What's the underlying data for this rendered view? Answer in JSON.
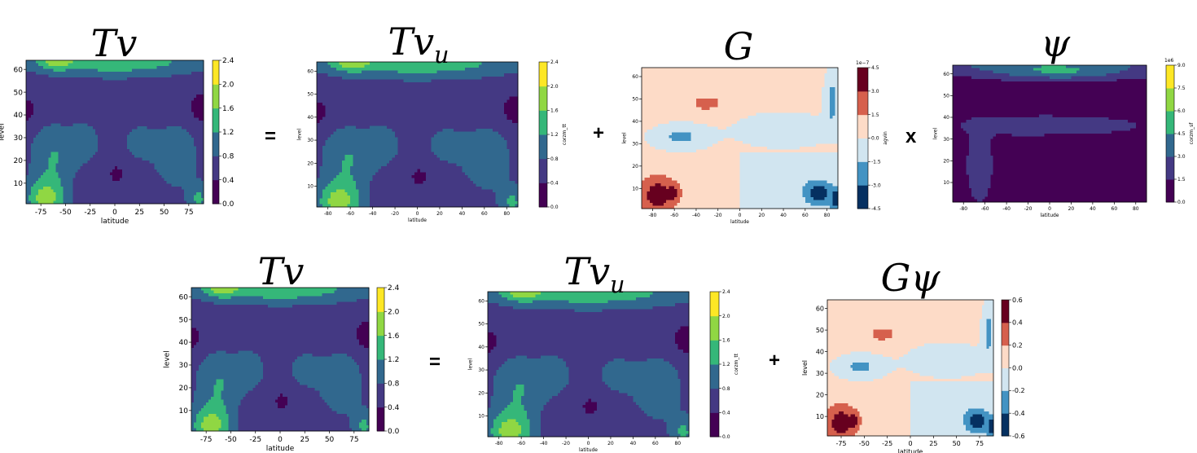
{
  "operators": {
    "top_equals": "=",
    "top_plus": "+",
    "top_times": "x",
    "bottom_equals": "=",
    "bottom_plus": "+"
  },
  "colors": {
    "viridis": [
      "#440154",
      "#443983",
      "#31688e",
      "#21918c",
      "#35b779",
      "#90d743",
      "#fde725"
    ],
    "rdbu": [
      "#053061",
      "#4393c3",
      "#d1e5f0",
      "#fddbc7",
      "#d6604d",
      "#67001f"
    ]
  },
  "chart_data": [
    {
      "id": "tv-top",
      "type": "heatmap",
      "title": "Tv",
      "title_sub": "",
      "xlabel": "latitude",
      "ylabel": "level",
      "cbar_label": "",
      "xticks": [
        "-75",
        "-50",
        "-25",
        "0",
        "25",
        "50",
        "75"
      ],
      "xtick_values": [
        -75,
        -50,
        -25,
        0,
        25,
        50,
        75
      ],
      "xlim": [
        -90,
        90
      ],
      "yticks": [
        "10",
        "20",
        "30",
        "40",
        "50",
        "60"
      ],
      "ytick_values": [
        10,
        20,
        30,
        40,
        50,
        60
      ],
      "ylim": [
        1,
        64
      ],
      "colorbar_ticks": [
        "0.0",
        "0.4",
        "0.8",
        "1.2",
        "1.6",
        "2.0",
        "2.4"
      ],
      "colorbar_levels": [
        0.0,
        0.4,
        0.8,
        1.2,
        1.6,
        2.0,
        2.4
      ],
      "colormap": "viridis",
      "field": "tv",
      "scale": 1,
      "offset": 0
    },
    {
      "id": "tvu-top",
      "type": "heatmap",
      "title": "Tv",
      "title_sub": "u",
      "xlabel": "latitude",
      "ylabel": "level",
      "cbar_label": "corzm_tt",
      "xticks": [
        "-80",
        "-60",
        "-40",
        "-20",
        "0",
        "20",
        "40",
        "60",
        "80"
      ],
      "xtick_values": [
        -80,
        -60,
        -40,
        -20,
        0,
        20,
        40,
        60,
        80
      ],
      "xlim": [
        -90,
        90
      ],
      "yticks": [
        "10",
        "20",
        "30",
        "40",
        "50",
        "60"
      ],
      "ytick_values": [
        10,
        20,
        30,
        40,
        50,
        60
      ],
      "ylim": [
        1,
        64
      ],
      "colorbar_ticks": [
        "0.0",
        "0.4",
        "0.8",
        "1.2",
        "1.6",
        "2.0",
        "2.4"
      ],
      "colorbar_levels": [
        0.0,
        0.4,
        0.8,
        1.2,
        1.6,
        2.0,
        2.4
      ],
      "colormap": "viridis",
      "field": "tv",
      "scale": 1,
      "offset": 0
    },
    {
      "id": "g-top",
      "type": "heatmap",
      "title": "G",
      "title_sub": "",
      "xlabel": "latitude",
      "ylabel": "level",
      "cbar_label": "agvin",
      "colorbar_exponent": "1e−7",
      "xticks": [
        "-80",
        "-60",
        "-40",
        "-20",
        "0",
        "20",
        "40",
        "60",
        "80"
      ],
      "xtick_values": [
        -80,
        -60,
        -40,
        -20,
        0,
        20,
        40,
        60,
        80
      ],
      "xlim": [
        -90,
        90
      ],
      "yticks": [
        "10",
        "20",
        "30",
        "40",
        "50",
        "60"
      ],
      "ytick_values": [
        10,
        20,
        30,
        40,
        50,
        60
      ],
      "ylim": [
        1,
        64
      ],
      "colorbar_ticks": [
        "-4.5",
        "-3.0",
        "-1.5",
        "0.0",
        "1.5",
        "3.0",
        "4.5"
      ],
      "colorbar_levels": [
        -4.5,
        -3.0,
        -1.5,
        0.0,
        1.5,
        3.0,
        4.5
      ],
      "colormap": "rdbu",
      "field": "g",
      "scale": 4.5,
      "offset": 0
    },
    {
      "id": "psi-top",
      "type": "heatmap",
      "title": "ψ",
      "title_sub": "",
      "xlabel": "latitude",
      "ylabel": "level",
      "cbar_label": "corzm_sf",
      "colorbar_exponent": "1e6",
      "xticks": [
        "-80",
        "-60",
        "-40",
        "-20",
        "0",
        "20",
        "40",
        "60",
        "80"
      ],
      "xtick_values": [
        -80,
        -60,
        -40,
        -20,
        0,
        20,
        40,
        60,
        80
      ],
      "xlim": [
        -90,
        90
      ],
      "yticks": [
        "10",
        "20",
        "30",
        "40",
        "50",
        "60"
      ],
      "ytick_values": [
        10,
        20,
        30,
        40,
        50,
        60
      ],
      "ylim": [
        1,
        64
      ],
      "colorbar_ticks": [
        "0.0",
        "1.5",
        "3.0",
        "4.5",
        "6.0",
        "7.5",
        "9.0"
      ],
      "colorbar_levels": [
        0.0,
        1.5,
        3.0,
        4.5,
        6.0,
        7.5,
        9.0
      ],
      "colormap": "viridis",
      "field": "psi",
      "scale": 1,
      "offset": 0
    },
    {
      "id": "tv-bottom",
      "type": "heatmap",
      "title": "Tv",
      "title_sub": "",
      "xlabel": "latitude",
      "ylabel": "level",
      "cbar_label": "",
      "xticks": [
        "-75",
        "-50",
        "-25",
        "0",
        "25",
        "50",
        "75"
      ],
      "xtick_values": [
        -75,
        -50,
        -25,
        0,
        25,
        50,
        75
      ],
      "xlim": [
        -90,
        90
      ],
      "yticks": [
        "10",
        "20",
        "30",
        "40",
        "50",
        "60"
      ],
      "ytick_values": [
        10,
        20,
        30,
        40,
        50,
        60
      ],
      "ylim": [
        1,
        64
      ],
      "colorbar_ticks": [
        "0.0",
        "0.4",
        "0.8",
        "1.2",
        "1.6",
        "2.0",
        "2.4"
      ],
      "colorbar_levels": [
        0.0,
        0.4,
        0.8,
        1.2,
        1.6,
        2.0,
        2.4
      ],
      "colormap": "viridis",
      "field": "tv",
      "scale": 1,
      "offset": 0
    },
    {
      "id": "tvu-bottom",
      "type": "heatmap",
      "title": "Tv",
      "title_sub": "u",
      "xlabel": "latitude",
      "ylabel": "level",
      "cbar_label": "corzm_tt",
      "xticks": [
        "-80",
        "-60",
        "-40",
        "-20",
        "0",
        "20",
        "40",
        "60",
        "80"
      ],
      "xtick_values": [
        -80,
        -60,
        -40,
        -20,
        0,
        20,
        40,
        60,
        80
      ],
      "xlim": [
        -90,
        90
      ],
      "yticks": [
        "10",
        "20",
        "30",
        "40",
        "50",
        "60"
      ],
      "ytick_values": [
        10,
        20,
        30,
        40,
        50,
        60
      ],
      "ylim": [
        1,
        64
      ],
      "colorbar_ticks": [
        "0.0",
        "0.4",
        "0.8",
        "1.2",
        "1.6",
        "2.0",
        "2.4"
      ],
      "colorbar_levels": [
        0.0,
        0.4,
        0.8,
        1.2,
        1.6,
        2.0,
        2.4
      ],
      "colormap": "viridis",
      "field": "tv",
      "scale": 1,
      "offset": 0
    },
    {
      "id": "gpsi-bottom",
      "type": "heatmap",
      "title": "Gψ",
      "title_sub": "",
      "xlabel": "latitude",
      "ylabel": "level",
      "cbar_label": "",
      "xticks": [
        "-75",
        "-50",
        "-25",
        "0",
        "25",
        "50",
        "75"
      ],
      "xtick_values": [
        -75,
        -50,
        -25,
        0,
        25,
        50,
        75
      ],
      "xlim": [
        -90,
        90
      ],
      "yticks": [
        "10",
        "20",
        "30",
        "40",
        "50",
        "60"
      ],
      "ytick_values": [
        10,
        20,
        30,
        40,
        50,
        60
      ],
      "ylim": [
        1,
        64
      ],
      "colorbar_ticks": [
        "-0.6",
        "-0.4",
        "-0.2",
        "0.0",
        "0.2",
        "0.4",
        "0.6"
      ],
      "colorbar_levels": [
        -0.6,
        -0.4,
        -0.2,
        0.0,
        0.2,
        0.4,
        0.6
      ],
      "colormap": "rdbu",
      "field": "g",
      "scale": 0.6,
      "offset": 0
    }
  ]
}
